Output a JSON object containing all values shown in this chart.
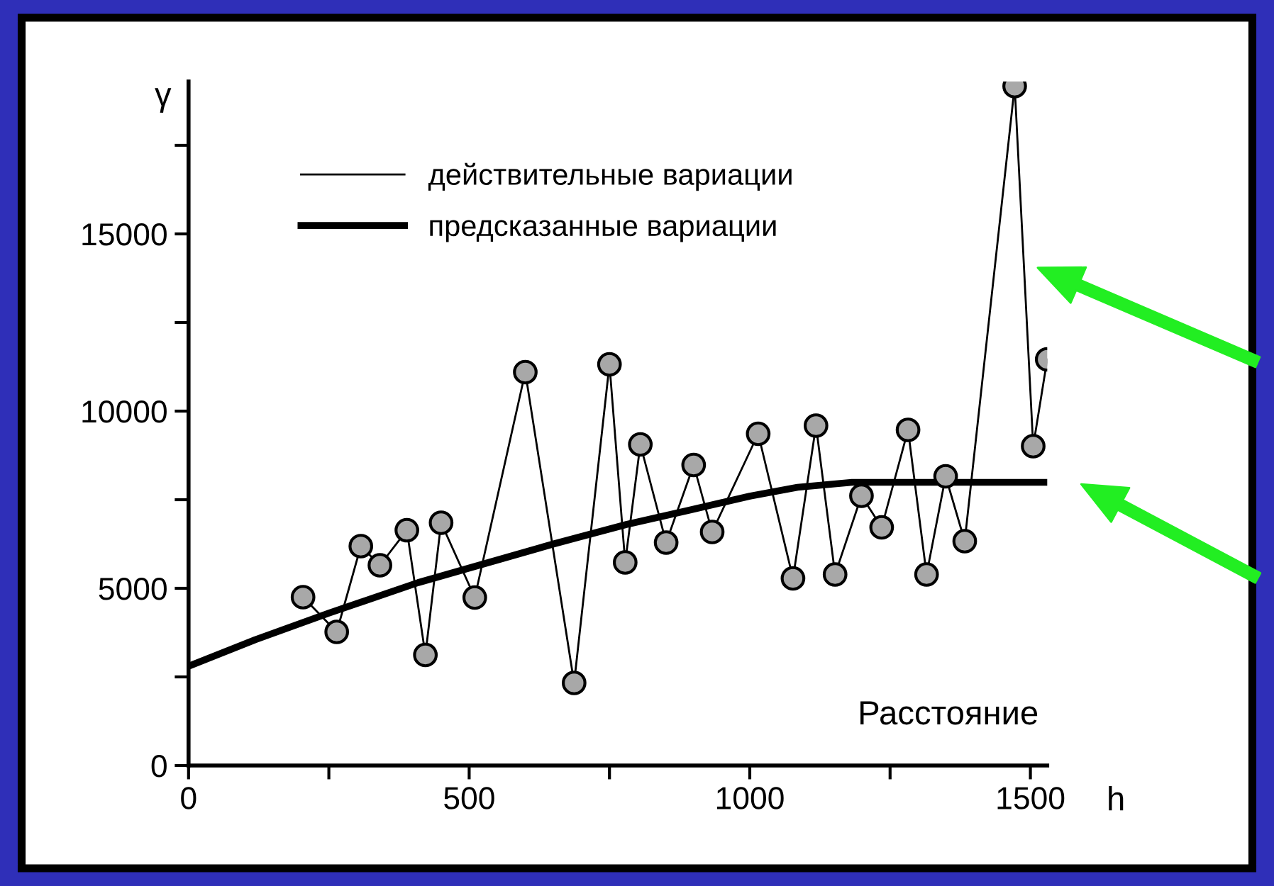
{
  "chart_data": {
    "type": "line",
    "ylabel": "γ",
    "xlabel": "h",
    "xlim": [
      0,
      1530
    ],
    "ylim": [
      0,
      19300
    ],
    "xticks": [
      0,
      {
        "value": 250,
        "label": null
      },
      500,
      {
        "value": 750,
        "label": null
      },
      1000,
      {
        "value": 1250,
        "label": null
      },
      1500
    ],
    "yticks": [
      0,
      {
        "value": 2500,
        "label": null
      },
      5000,
      {
        "value": 7500,
        "label": null
      },
      10000,
      {
        "value": 12500,
        "label": null
      },
      15000,
      {
        "value": 17500,
        "label": null
      }
    ],
    "grid": false,
    "legend": "top left",
    "annotations": [
      "Расстояние"
    ],
    "series": [
      {
        "name": "действительные вариации",
        "color": "#000000",
        "marker": "circle",
        "line_style": "solid",
        "x": [
          204,
          264,
          307,
          341,
          389,
          422,
          450,
          510,
          600,
          687,
          750,
          778,
          805,
          851,
          900,
          933,
          1015,
          1077,
          1118,
          1152,
          1199,
          1235,
          1282,
          1315,
          1349,
          1383,
          1472,
          1505,
          1530
        ],
        "values": [
          4750,
          3770,
          6190,
          5650,
          6640,
          3120,
          6850,
          4740,
          11100,
          2330,
          11320,
          5730,
          9060,
          6290,
          8480,
          6590,
          9360,
          5280,
          9590,
          5390,
          7610,
          6720,
          9470,
          5390,
          8160,
          6330,
          19170,
          9010,
          11460
        ]
      },
      {
        "name": "предсказанные вариации",
        "color": "#000000",
        "marker": "none",
        "line_style": "solid",
        "x": [
          0,
          119,
          250,
          409,
          650,
          780,
          891,
          1000,
          1085,
          1182,
          1530
        ],
        "values": [
          2800,
          3550,
          4300,
          5160,
          6250,
          6800,
          7200,
          7600,
          7850,
          7990,
          7990
        ]
      }
    ]
  }
}
